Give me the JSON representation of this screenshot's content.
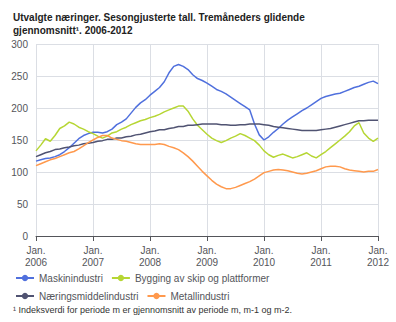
{
  "chart_data": {
    "type": "line",
    "title": "Utvalgte næringer. Sesongjusterte tall. Tremåneders glidende\ngjennomsnitt¹. 2006-2012",
    "annotations": [
      "¹ Indeksverdi for periode m er gjennomsnitt av periode m, m-1 og m-2."
    ],
    "categories": [
      "Jan.\n2006",
      null,
      null,
      null,
      null,
      null,
      null,
      null,
      null,
      null,
      null,
      null,
      "Jan.\n2007",
      null,
      null,
      null,
      null,
      null,
      null,
      null,
      null,
      null,
      null,
      null,
      "Jan.\n2008",
      null,
      null,
      null,
      null,
      null,
      null,
      null,
      null,
      null,
      null,
      null,
      "Jan.\n2009",
      null,
      null,
      null,
      null,
      null,
      null,
      null,
      null,
      null,
      null,
      null,
      "Jan.\n2010",
      null,
      null,
      null,
      null,
      null,
      null,
      null,
      null,
      null,
      null,
      null,
      "Jan.\n2011",
      null,
      null,
      null,
      null,
      null,
      null,
      null,
      null,
      null,
      null,
      null,
      "Jan.\n2012"
    ],
    "series": [
      {
        "name": "Maskinindustri",
        "values": [
          117,
          119,
          121,
          122,
          124,
          127,
          132,
          138,
          145,
          152,
          157,
          160,
          162,
          162,
          161,
          163,
          167,
          174,
          178,
          183,
          192,
          201,
          208,
          213,
          220,
          226,
          232,
          241,
          255,
          265,
          268,
          265,
          260,
          252,
          246,
          243,
          239,
          234,
          229,
          226,
          222,
          217,
          212,
          207,
          202,
          197,
          175,
          158,
          150,
          155,
          162,
          168,
          175,
          181,
          186,
          191,
          196,
          200,
          205,
          210,
          215,
          218,
          220,
          222,
          223,
          226,
          229,
          232,
          234,
          237,
          240,
          242,
          238
        ]
      },
      {
        "name": "Bygging av skip og plattformer",
        "values": [
          133,
          142,
          152,
          148,
          157,
          168,
          172,
          178,
          175,
          170,
          167,
          163,
          160,
          156,
          153,
          156,
          161,
          163,
          167,
          170,
          174,
          177,
          180,
          182,
          185,
          187,
          190,
          194,
          197,
          200,
          203,
          203,
          195,
          183,
          173,
          166,
          159,
          153,
          149,
          146,
          149,
          153,
          156,
          160,
          157,
          153,
          149,
          142,
          133,
          127,
          123,
          126,
          128,
          125,
          122,
          124,
          127,
          130,
          125,
          122,
          127,
          132,
          138,
          144,
          150,
          156,
          163,
          172,
          177,
          161,
          153,
          148,
          153
        ]
      },
      {
        "name": "Næringsmiddelindustri",
        "values": [
          124,
          127,
          130,
          132,
          135,
          136,
          138,
          139,
          141,
          142,
          144,
          145,
          146,
          148,
          149,
          151,
          151,
          153,
          153,
          155,
          156,
          158,
          159,
          161,
          163,
          164,
          166,
          166,
          168,
          169,
          171,
          171,
          173,
          173,
          174,
          175,
          175,
          175,
          175,
          174,
          174,
          173,
          173,
          174,
          174,
          175,
          175,
          175,
          174,
          173,
          171,
          170,
          169,
          168,
          167,
          166,
          165,
          165,
          165,
          165,
          166,
          167,
          168,
          170,
          172,
          174,
          176,
          178,
          180,
          180,
          181,
          181,
          181
        ]
      },
      {
        "name": "Metallindustri",
        "values": [
          110,
          113,
          116,
          119,
          121,
          124,
          127,
          130,
          132,
          136,
          141,
          146,
          150,
          154,
          157,
          157,
          153,
          151,
          149,
          148,
          146,
          144,
          143,
          143,
          143,
          143,
          144,
          143,
          140,
          138,
          135,
          130,
          124,
          117,
          109,
          101,
          94,
          87,
          81,
          77,
          74,
          74,
          76,
          79,
          82,
          85,
          89,
          94,
          99,
          101,
          103,
          104,
          103,
          102,
          100,
          98,
          97,
          98,
          100,
          102,
          105,
          108,
          109,
          109,
          108,
          105,
          103,
          102,
          101,
          100,
          101,
          101,
          104
        ]
      }
    ],
    "ylim": [
      0,
      300
    ],
    "yticks": [
      0,
      50,
      100,
      150,
      200,
      250,
      300
    ],
    "grid": true,
    "legend": "bottom"
  }
}
